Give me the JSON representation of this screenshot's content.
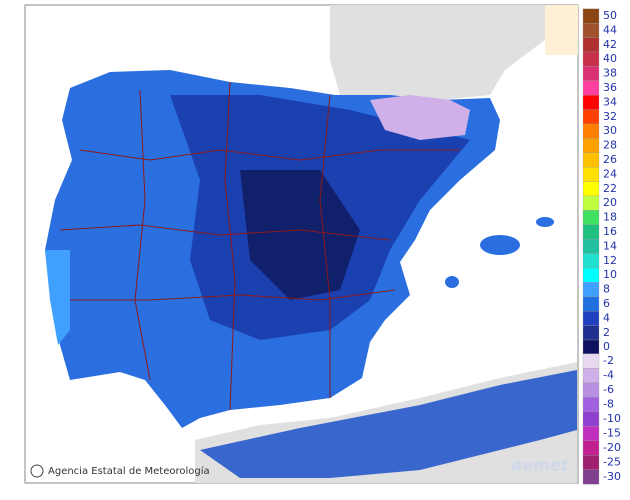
{
  "credit": "Agencia Estatal de Meteorología",
  "logo": "aemet",
  "legend": {
    "positive": [
      {
        "label": "50",
        "color": "#8b4513"
      },
      {
        "label": "44",
        "color": "#a0522d"
      },
      {
        "label": "42",
        "color": "#b03030"
      },
      {
        "label": "40",
        "color": "#c8304a"
      },
      {
        "label": "38",
        "color": "#d83070"
      },
      {
        "label": "36",
        "color": "#ff40a0"
      },
      {
        "label": "34",
        "color": "#ff0000"
      },
      {
        "label": "32",
        "color": "#ff4000"
      },
      {
        "label": "30",
        "color": "#ff8000"
      },
      {
        "label": "28",
        "color": "#ffa000"
      },
      {
        "label": "26",
        "color": "#ffc000"
      },
      {
        "label": "24",
        "color": "#ffe000"
      },
      {
        "label": "22",
        "color": "#ffff00"
      },
      {
        "label": "20",
        "color": "#c0ff40"
      },
      {
        "label": "18",
        "color": "#40e060"
      },
      {
        "label": "16",
        "color": "#20c080"
      },
      {
        "label": "14",
        "color": "#20c0a0"
      },
      {
        "label": "12",
        "color": "#20e0d0"
      },
      {
        "label": "10",
        "color": "#00ffff"
      },
      {
        "label": "8",
        "color": "#40a0ff"
      },
      {
        "label": "6",
        "color": "#2070e0"
      },
      {
        "label": "4",
        "color": "#2040c0"
      },
      {
        "label": "2",
        "color": "#203090"
      },
      {
        "label": "0",
        "color": "#101060"
      }
    ],
    "negative": [
      {
        "label": "-2",
        "color": "#e8d8f0"
      },
      {
        "label": "-4",
        "color": "#d0b0e8"
      },
      {
        "label": "-6",
        "color": "#b890e0"
      },
      {
        "label": "-8",
        "color": "#a060e0"
      },
      {
        "label": "-10",
        "color": "#9040d0"
      },
      {
        "label": "-15",
        "color": "#c030c0"
      },
      {
        "label": "-20",
        "color": "#c02090"
      },
      {
        "label": "-25",
        "color": "#a02070"
      },
      {
        "label": "-30",
        "color": "#804090"
      }
    ]
  }
}
